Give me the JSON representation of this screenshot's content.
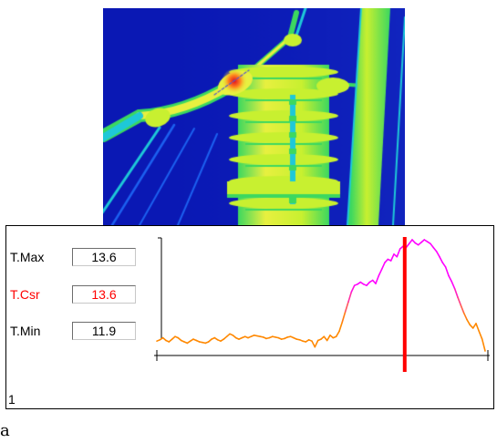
{
  "thermal_image": {
    "label": "thermal-camera-frame",
    "palette": [
      "#0a18b4",
      "#1c60f0",
      "#1ec8d8",
      "#3cd860",
      "#c8f030",
      "#e8f040",
      "#ff8a1e",
      "#e81e1e"
    ]
  },
  "readouts": {
    "max": {
      "label": "T.Max",
      "value": "13.6",
      "color": "#000000"
    },
    "cursor": {
      "label": "T.Csr",
      "value": "13.6",
      "color": "#ff0000"
    },
    "min": {
      "label": "T.Min",
      "value": "11.9",
      "color": "#000000"
    }
  },
  "footer": {
    "index": "1"
  },
  "trailing_text": "a",
  "chart_data": {
    "type": "line",
    "ylim": [
      11.9,
      13.6
    ],
    "cursor_position": 0.755,
    "colors": {
      "low": "#ff8800",
      "high": "#ff00ff",
      "cursor": "#ff0000"
    },
    "y": [
      12.05,
      12.07,
      12.1,
      12.06,
      12.04,
      12.08,
      12.12,
      12.1,
      12.06,
      12.04,
      12.02,
      12.05,
      12.08,
      12.06,
      12.04,
      12.03,
      12.02,
      12.04,
      12.08,
      12.1,
      12.07,
      12.05,
      12.08,
      12.12,
      12.16,
      12.14,
      12.1,
      12.08,
      12.1,
      12.12,
      12.1,
      12.12,
      12.14,
      12.13,
      12.12,
      12.11,
      12.09,
      12.1,
      12.12,
      12.11,
      12.1,
      12.08,
      12.09,
      12.11,
      12.12,
      12.1,
      12.08,
      12.07,
      12.05,
      12.04,
      12.07,
      12.05,
      11.96,
      12.06,
      12.08,
      12.12,
      12.06,
      12.14,
      12.1,
      12.12,
      12.2,
      12.34,
      12.5,
      12.65,
      12.8,
      12.9,
      12.92,
      12.95,
      12.92,
      12.9,
      12.95,
      12.98,
      12.93,
      13.05,
      13.15,
      13.25,
      13.3,
      13.28,
      13.38,
      13.34,
      13.46,
      13.5,
      13.48,
      13.54,
      13.6,
      13.55,
      13.52,
      13.56,
      13.6,
      13.57,
      13.54,
      13.48,
      13.42,
      13.34,
      13.25,
      13.18,
      13.05,
      12.96,
      12.85,
      12.72,
      12.6,
      12.48,
      12.38,
      12.3,
      12.25,
      12.32,
      12.2,
      12.08,
      11.9
    ]
  }
}
